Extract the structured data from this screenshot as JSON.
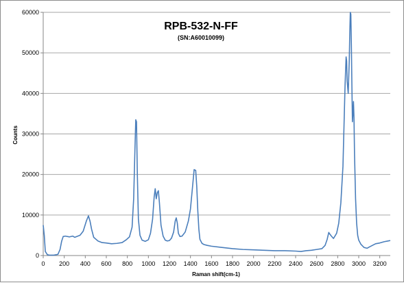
{
  "chart_data": {
    "type": "line",
    "title": "RPB-532-N-FF",
    "subtitle": "(SN:A60010099)",
    "xlabel": "Raman shift(cm-1)",
    "ylabel": "Counts",
    "xlim": [
      0,
      3300
    ],
    "ylim": [
      0,
      60000
    ],
    "x_ticks": [
      "0",
      "200",
      "400",
      "600",
      "800",
      "1000",
      "1200",
      "1400",
      "1600",
      "1800",
      "2000",
      "2200",
      "2400",
      "2600",
      "2800",
      "3000",
      "3200"
    ],
    "y_ticks": [
      "0",
      "10000",
      "20000",
      "30000",
      "40000",
      "50000",
      "60000"
    ],
    "grid": "horizontal",
    "legend": "none",
    "colors": {
      "line": "#4a7ebb",
      "grid": "#a6a6a6",
      "axis": "#868686",
      "text": "#000000"
    },
    "series": [
      {
        "color": "#4a7ebb",
        "x": [
          0,
          10,
          20,
          40,
          60,
          100,
          140,
          160,
          175,
          190,
          210,
          250,
          280,
          300,
          350,
          380,
          410,
          430,
          445,
          460,
          480,
          520,
          560,
          600,
          650,
          700,
          750,
          790,
          820,
          845,
          860,
          872,
          880,
          887,
          895,
          905,
          920,
          940,
          970,
          1000,
          1020,
          1040,
          1055,
          1065,
          1075,
          1085,
          1095,
          1105,
          1120,
          1140,
          1160,
          1180,
          1200,
          1220,
          1240,
          1255,
          1265,
          1275,
          1285,
          1300,
          1320,
          1350,
          1380,
          1400,
          1420,
          1435,
          1450,
          1460,
          1470,
          1480,
          1490,
          1510,
          1530,
          1560,
          1600,
          1700,
          1800,
          1900,
          2000,
          2100,
          2200,
          2300,
          2400,
          2450,
          2500,
          2550,
          2600,
          2650,
          2680,
          2700,
          2715,
          2725,
          2740,
          2760,
          2790,
          2810,
          2830,
          2850,
          2860,
          2870,
          2880,
          2885,
          2890,
          2900,
          2910,
          2915,
          2920,
          2925,
          2930,
          2935,
          2940,
          2945,
          2950,
          2955,
          2960,
          2970,
          2980,
          2990,
          3000,
          3020,
          3050,
          3080,
          3100,
          3130,
          3160,
          3200,
          3240,
          3280,
          3300
        ],
        "y": [
          7500,
          5000,
          1000,
          200,
          100,
          100,
          300,
          1500,
          3500,
          4700,
          4800,
          4600,
          4800,
          4500,
          5000,
          6000,
          8500,
          9800,
          8500,
          6500,
          4500,
          3600,
          3200,
          3100,
          2900,
          3000,
          3200,
          3900,
          4600,
          7000,
          14000,
          26000,
          33500,
          33000,
          20000,
          9000,
          5000,
          3800,
          3500,
          3900,
          5500,
          9000,
          14500,
          16500,
          14000,
          15500,
          16000,
          13000,
          7500,
          4800,
          3800,
          3600,
          3700,
          4300,
          5800,
          8500,
          9300,
          8000,
          5500,
          4700,
          4800,
          5800,
          8500,
          11500,
          17000,
          21200,
          21000,
          17000,
          11000,
          6500,
          4000,
          3000,
          2700,
          2500,
          2300,
          2000,
          1700,
          1500,
          1400,
          1300,
          1200,
          1200,
          1100,
          1000,
          1200,
          1300,
          1500,
          1700,
          2500,
          4000,
          5700,
          5300,
          4800,
          4200,
          5500,
          8000,
          13000,
          22000,
          32000,
          42000,
          49000,
          48000,
          43000,
          40000,
          48000,
          55000,
          60000,
          59500,
          52000,
          42000,
          33000,
          35000,
          38000,
          34000,
          25000,
          14000,
          8000,
          5000,
          3800,
          2800,
          2000,
          1800,
          2100,
          2500,
          2900,
          3100,
          3400,
          3600,
          3700
        ]
      }
    ]
  }
}
